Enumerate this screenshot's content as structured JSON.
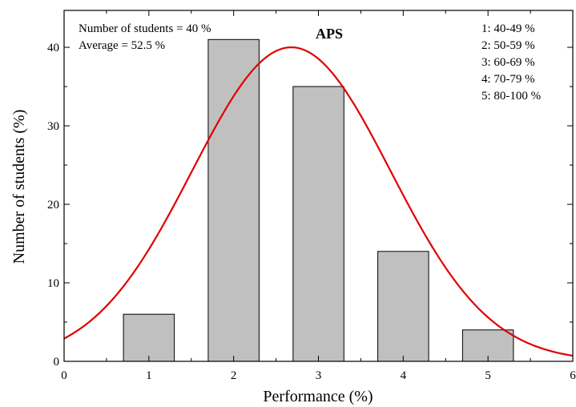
{
  "chart_data": {
    "type": "bar",
    "title": "APS",
    "xlabel": "Performance (%)",
    "ylabel": "Number of students (%)",
    "xlim": [
      0,
      6
    ],
    "ylim": [
      0,
      44.7
    ],
    "x_ticks": [
      "0",
      "1",
      "2",
      "3",
      "4",
      "5",
      "6"
    ],
    "y_ticks": [
      "0",
      "10",
      "20",
      "30",
      "40"
    ],
    "categories": [
      "1",
      "2",
      "3",
      "4",
      "5"
    ],
    "values": [
      6,
      41,
      35,
      14,
      4
    ],
    "bar_color": "#c0c0c0",
    "fit_curve": {
      "type": "gaussian",
      "peak": 40,
      "mean": 2.68,
      "sigma": 1.17,
      "color": "#e00000"
    },
    "annotations_left": [
      "Number of students = 40 %",
      "Average = 52.5 %"
    ],
    "legend_right": [
      "1: 40-49 %",
      "2: 50-59 %",
      "3: 60-69 %",
      "4: 70-79 %",
      "5: 80-100 %"
    ],
    "grid": false,
    "legend_position": "top-right"
  }
}
